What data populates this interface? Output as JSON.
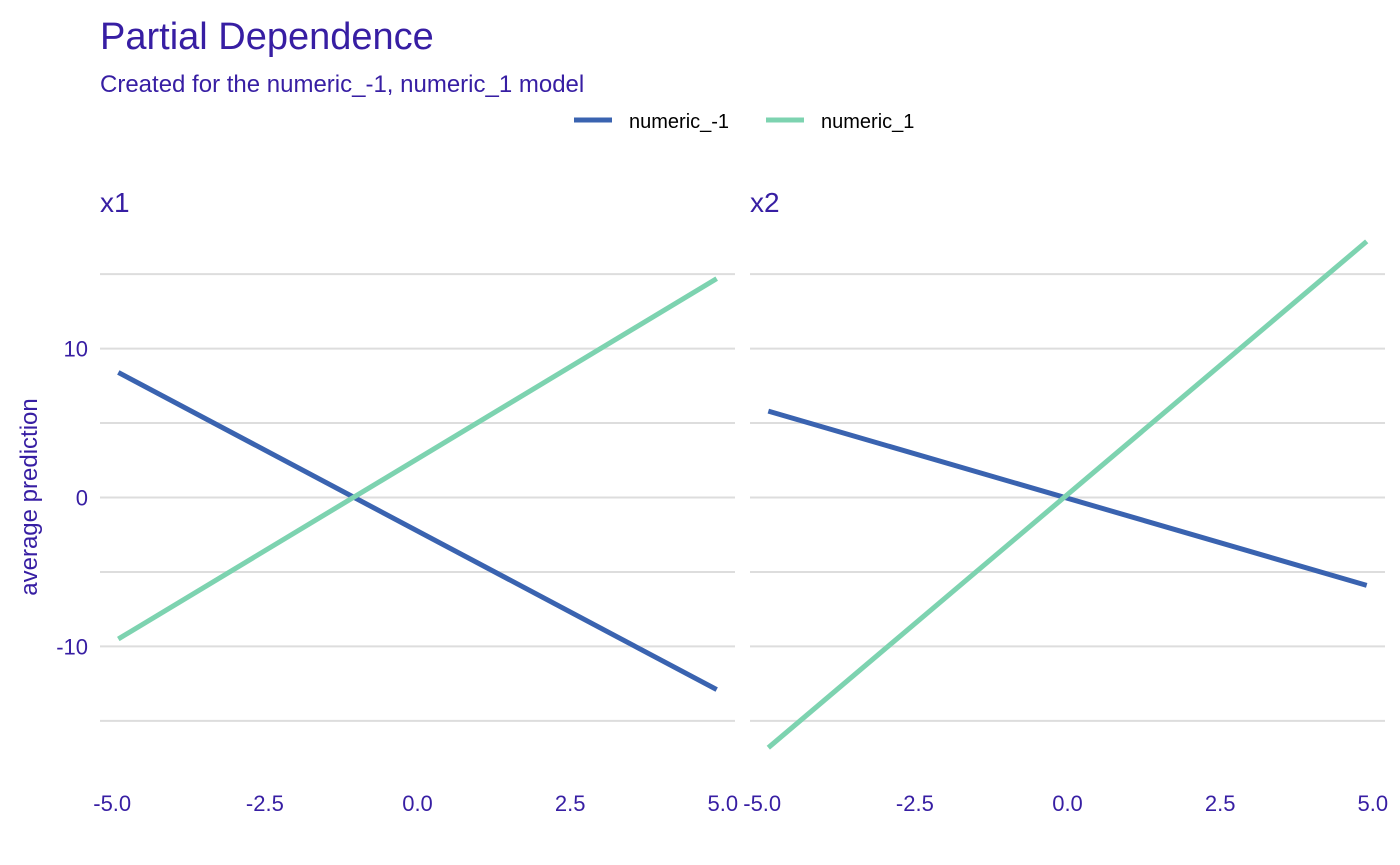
{
  "chart_data": {
    "type": "line",
    "title": "Partial Dependence",
    "subtitle": "Created for the numeric_-1, numeric_1 model",
    "ylabel": "average prediction",
    "legend_position": "top",
    "grid": "horizontal",
    "ylim": [
      -18.3,
      18.1
    ],
    "yticks": [
      -10,
      0,
      10
    ],
    "ytick_labels": [
      "-10",
      "0",
      "10"
    ],
    "xticks": [
      -5.0,
      -2.5,
      0.0,
      2.5,
      5.0
    ],
    "xtick_labels": [
      "-5.0",
      "-2.5",
      "0.0",
      "2.5",
      "5.0"
    ],
    "colors": {
      "numeric_-1": "#3a63b0",
      "numeric_1": "#7dd3b0",
      "text": "#371ea3",
      "grid": "#dddddd"
    },
    "legend": [
      {
        "name": "numeric_-1",
        "color": "#3a63b0"
      },
      {
        "name": "numeric_1",
        "color": "#7dd3b0"
      }
    ],
    "panels": [
      {
        "label": "x1",
        "xlim": [
          -5.2,
          5.2
        ],
        "series": [
          {
            "name": "numeric_-1",
            "x": [
              -4.9,
              4.9
            ],
            "y": [
              8.4,
              -12.9
            ]
          },
          {
            "name": "numeric_1",
            "x": [
              -4.9,
              4.9
            ],
            "y": [
              -9.5,
              14.7
            ]
          }
        ]
      },
      {
        "label": "x2",
        "xlim": [
          -5.2,
          5.2
        ],
        "series": [
          {
            "name": "numeric_-1",
            "x": [
              -4.9,
              4.9
            ],
            "y": [
              5.8,
              -5.9
            ]
          },
          {
            "name": "numeric_1",
            "x": [
              -4.9,
              4.9
            ],
            "y": [
              -16.8,
              17.2
            ]
          }
        ]
      }
    ]
  }
}
